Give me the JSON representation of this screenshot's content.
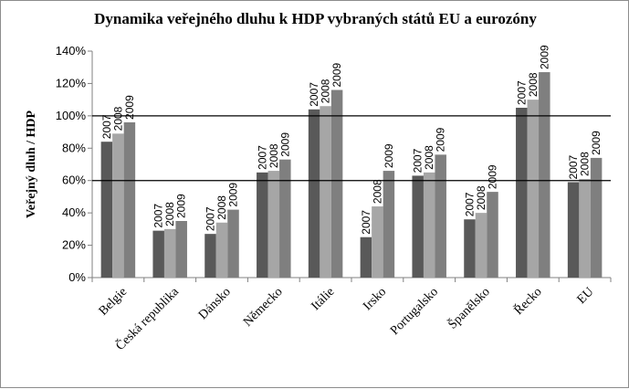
{
  "chart_data": {
    "type": "bar",
    "title": "Dynamika veřejného dluhu k HDP vybraných států EU a eurozóny",
    "ylabel": "Veřejný dluh / HDP",
    "xlabel": "",
    "categories": [
      "Belgie",
      "Česká republika",
      "Dánsko",
      "Německo",
      "Itálie",
      "Irsko",
      "Portugalsko",
      "Španělsko",
      "Řecko",
      "EU"
    ],
    "series": [
      {
        "name": "2007",
        "color": "#595959",
        "values": [
          84,
          29,
          27,
          65,
          104,
          25,
          63,
          36,
          105,
          59
        ]
      },
      {
        "name": "2008",
        "color": "#a6a6a6",
        "values": [
          89,
          30,
          34,
          66,
          106,
          44,
          65,
          40,
          110,
          61
        ]
      },
      {
        "name": "2009",
        "color": "#7f7f7f",
        "values": [
          96,
          35,
          42,
          73,
          116,
          66,
          76,
          53,
          127,
          74
        ]
      }
    ],
    "data_labels": [
      "2007",
      "2008",
      "2009"
    ],
    "ylim": [
      0,
      140
    ],
    "yticks": [
      0,
      20,
      40,
      60,
      80,
      100,
      120,
      140
    ],
    "ytick_labels": [
      "0%",
      "20%",
      "40%",
      "60%",
      "80%",
      "100%",
      "120%",
      "140%"
    ],
    "reference_lines": [
      60,
      100
    ],
    "grid": false,
    "legend": "none"
  }
}
